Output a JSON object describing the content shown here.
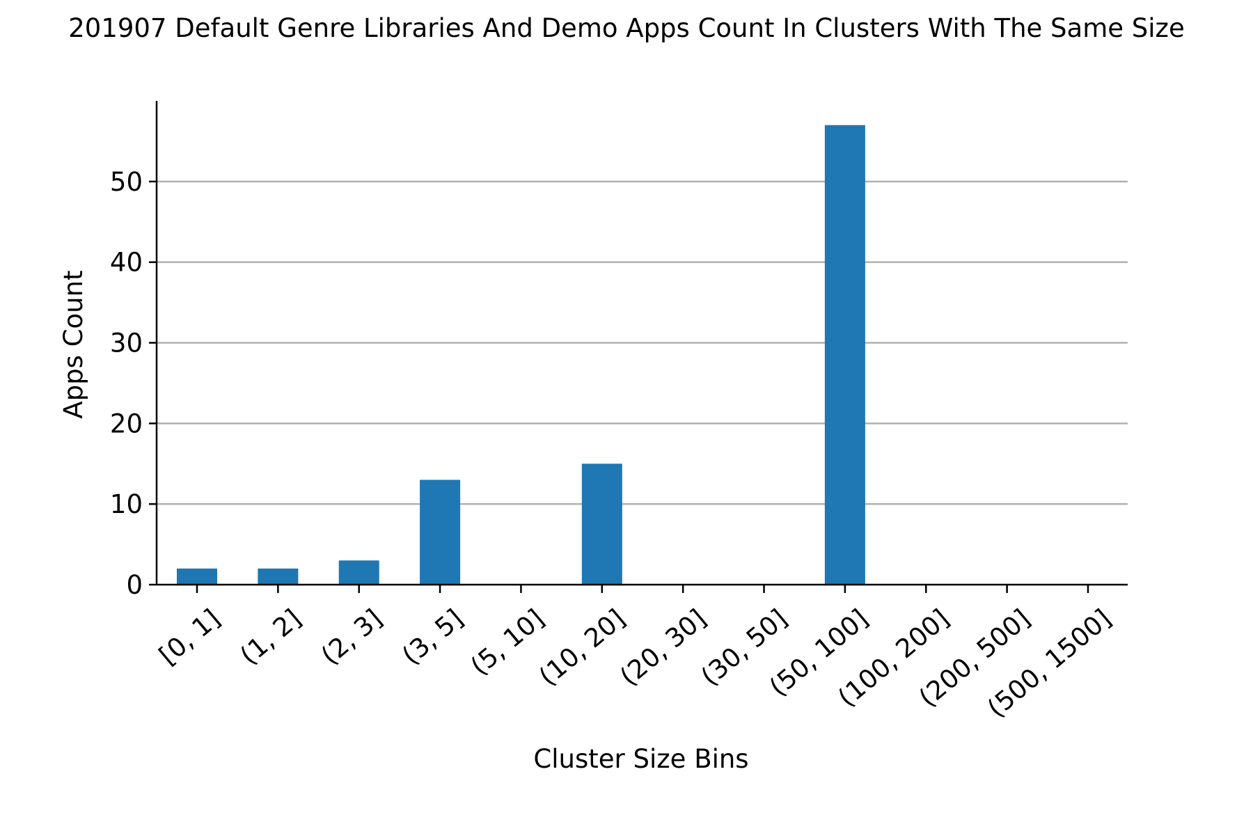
{
  "chart_data": {
    "type": "bar",
    "title": "201907 Default Genre Libraries And Demo Apps Count In Clusters With The Same Size",
    "xlabel": "Cluster Size Bins",
    "ylabel": "Apps Count",
    "categories": [
      "[0, 1]",
      "(1, 2]",
      "(2, 3]",
      "(3, 5]",
      "(5, 10]",
      "(10, 20]",
      "(20, 30]",
      "(30, 50]",
      "(50, 100]",
      "(100, 200]",
      "(200, 500]",
      "(500, 1500]"
    ],
    "values": [
      2,
      2,
      3,
      13,
      0,
      15,
      0,
      0,
      57,
      0,
      0,
      0
    ],
    "ylim": [
      0,
      60
    ],
    "yticks": [
      0,
      10,
      20,
      30,
      40,
      50
    ],
    "grid": "y",
    "colors": {
      "bar": "#1f77b4",
      "grid": "#b0b0b0",
      "axis": "#000000"
    }
  }
}
